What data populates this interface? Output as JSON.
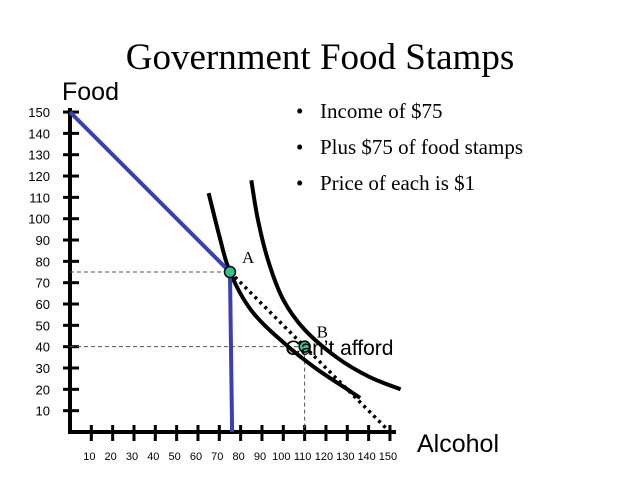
{
  "slide": {
    "title": "Government Food Stamps",
    "bullets": [
      "Income of $75",
      "Plus $75 of food stamps",
      "Price of each is $1"
    ]
  },
  "chart_data": {
    "type": "line",
    "title": "",
    "xlabel": "Alcohol",
    "ylabel": "Food",
    "xlim": [
      0,
      150
    ],
    "ylim": [
      0,
      150
    ],
    "x_ticks": [
      10,
      20,
      30,
      40,
      50,
      60,
      70,
      80,
      90,
      100,
      110,
      120,
      130,
      140,
      150
    ],
    "x_tick_labels": [
      "10",
      "20",
      "30",
      "40",
      "50",
      "60",
      "70",
      "80",
      "90",
      "100",
      "110",
      "120",
      "130",
      "140",
      "150"
    ],
    "y_ticks": [
      10,
      20,
      30,
      40,
      50,
      60,
      70,
      80,
      90,
      100,
      110,
      120,
      130,
      140,
      150
    ],
    "y_tick_labels": [
      "10",
      "20",
      "30",
      "40",
      "50",
      "60",
      "70",
      "80",
      "90",
      "100",
      "110",
      "120",
      "130",
      "140",
      "150"
    ],
    "grid": false,
    "colors": {
      "budget": "#3b3fb5",
      "indifference": "#000000",
      "point": "#2fc28f"
    },
    "budget_constraint": [
      [
        0,
        150
      ],
      [
        75,
        75
      ],
      [
        76,
        0
      ]
    ],
    "unaffordable_segment": [
      [
        75,
        75
      ],
      [
        150,
        0
      ]
    ],
    "indifference_curves": [
      [
        [
          65,
          112
        ],
        [
          70,
          92
        ],
        [
          75,
          75
        ],
        [
          85,
          57
        ],
        [
          100,
          42
        ],
        [
          115,
          30
        ],
        [
          130,
          20
        ],
        [
          136,
          16
        ]
      ],
      [
        [
          85,
          118
        ],
        [
          88,
          100
        ],
        [
          93,
          80
        ],
        [
          100,
          62
        ],
        [
          110,
          48
        ],
        [
          125,
          35
        ],
        [
          140,
          26
        ],
        [
          155,
          20
        ]
      ]
    ],
    "points": [
      {
        "label": "A",
        "x": 75,
        "y": 75
      },
      {
        "label": "B",
        "x": 110,
        "y": 40
      }
    ],
    "annotations": [
      {
        "text": "Can’t afford",
        "x": 130,
        "y": 37
      }
    ]
  }
}
